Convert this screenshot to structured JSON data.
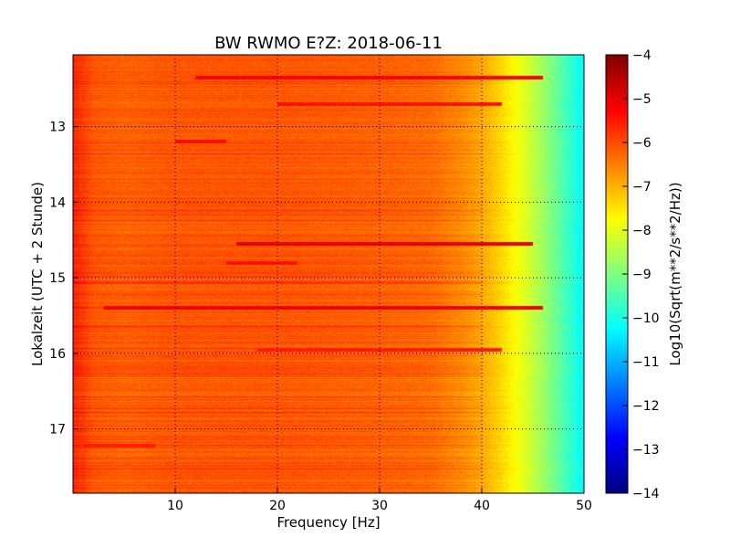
{
  "chart_data": {
    "type": "heatmap",
    "title": "BW RWMO E?Z: 2018-06-11",
    "xlabel": "Frequency [Hz]",
    "ylabel": "Lokalzeit (UTC + 2 Stunde)",
    "xlim": [
      0,
      50
    ],
    "ylim": [
      12.05,
      17.85
    ],
    "x_ticks": [
      10,
      20,
      30,
      40,
      50
    ],
    "x_tick_labels": [
      "10",
      "20",
      "30",
      "40",
      "50"
    ],
    "y_ticks": [
      13,
      14,
      15,
      16,
      17
    ],
    "y_tick_labels": [
      "13",
      "14",
      "15",
      "16",
      "17"
    ],
    "y_inverted": true,
    "grid": true,
    "colormap": "jet",
    "colorbar": {
      "label": "Log10(Sqrt(m**2/s**2/Hz))",
      "range": [
        -14,
        -4
      ],
      "ticks": [
        -4,
        -5,
        -6,
        -7,
        -8,
        -9,
        -10,
        -11,
        -12,
        -13,
        -14
      ],
      "tick_labels": [
        "−4",
        "−5",
        "−6",
        "−7",
        "−8",
        "−9",
        "−10",
        "−11",
        "−12",
        "−13",
        "−14"
      ]
    },
    "frequency_profile": {
      "x": [
        0,
        2,
        5,
        10,
        20,
        30,
        35,
        38,
        40,
        42,
        44,
        46,
        48,
        50
      ],
      "values": [
        -5.6,
        -6.1,
        -6.2,
        -6.1,
        -6.1,
        -6.2,
        -6.3,
        -6.6,
        -6.9,
        -7.4,
        -8.0,
        -8.7,
        -9.5,
        -10.3
      ]
    },
    "strong_bands": [
      {
        "time": 12.35,
        "f_start": 12,
        "f_end": 46,
        "value": -5.2
      },
      {
        "time": 12.7,
        "f_start": 20,
        "f_end": 42,
        "value": -5.4
      },
      {
        "time": 13.2,
        "f_start": 10,
        "f_end": 15,
        "value": -5.3
      },
      {
        "time": 14.55,
        "f_start": 16,
        "f_end": 45,
        "value": -5.0
      },
      {
        "time": 14.8,
        "f_start": 15,
        "f_end": 22,
        "value": -5.4
      },
      {
        "time": 15.4,
        "f_start": 3,
        "f_end": 46,
        "value": -5.1
      },
      {
        "time": 15.95,
        "f_start": 18,
        "f_end": 42,
        "value": -5.5
      },
      {
        "time": 17.22,
        "f_start": 1,
        "f_end": 8,
        "value": -5.5
      }
    ]
  }
}
